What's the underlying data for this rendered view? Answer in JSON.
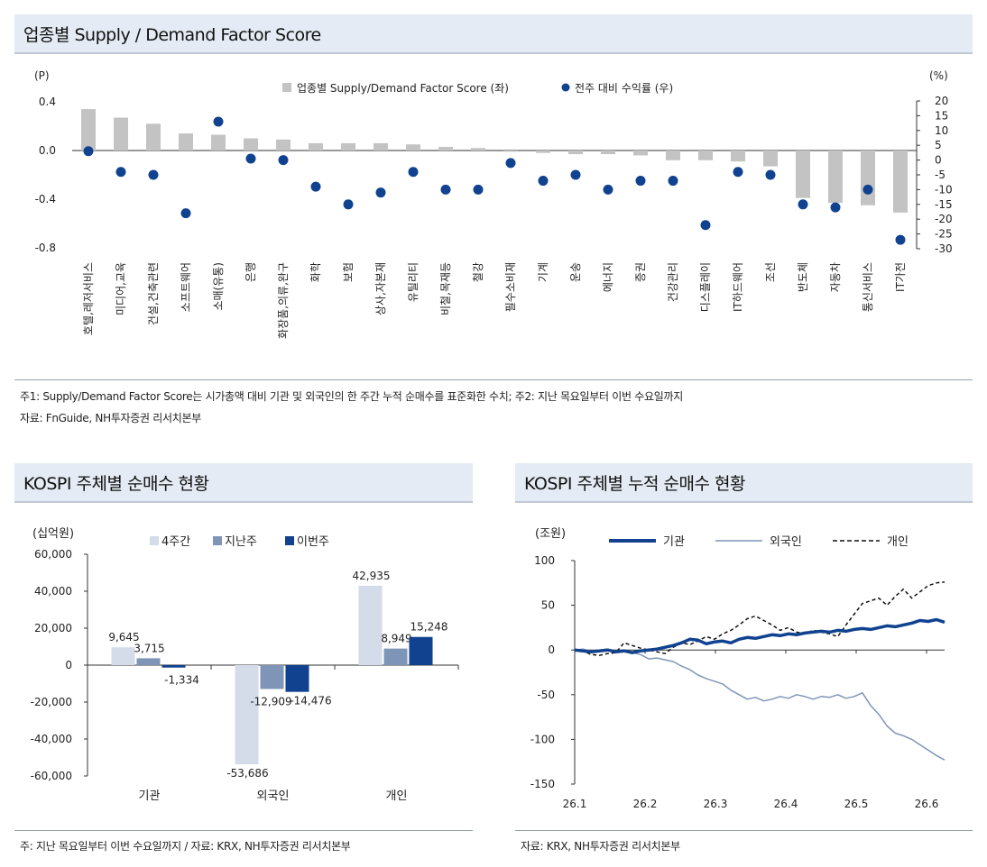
{
  "top": {
    "title": "업종별 Supply / Demand Factor Score",
    "left_unit": "(P)",
    "right_unit": "(%)",
    "legend": {
      "bar": "업종별 Supply/Demand Factor Score (좌)",
      "dot": "전주 대비 수익률 (우)"
    },
    "note1": "주1: Supply/Demand Factor Score는 시가총액 대비 기관 및 외국인의 한 주간 누적 순매수를 표준화한 수치; 주2: 지난 목요일부터 이번 수요일까지",
    "source": "자료: FnGuide, NH투자증권 리서치본부"
  },
  "bottom_left": {
    "title": "KOSPI 주체별 순매수 현황",
    "unit": "(십억원)",
    "note": "주: 지난 목요일부터 이번 수요일까지 / 자료: KRX, NH투자증권 리서치본부"
  },
  "bottom_right": {
    "title": "KOSPI 주체별 누적 순매수 현황",
    "unit": "(조원)",
    "note": "자료: KRX, NH투자증권 리서치본부"
  },
  "chart_data": [
    {
      "type": "bar",
      "categories": [
        "호텔,레저서비스",
        "미디어,교육",
        "건설,건축관련",
        "소프트웨어",
        "소매(유통)",
        "은행",
        "화장품,의류,완구",
        "화학",
        "보험",
        "상사,자본재",
        "유틸리티",
        "비철,목재등",
        "철강",
        "필수소비재",
        "기계",
        "운송",
        "에너지",
        "증권",
        "건강관리",
        "디스플레이",
        "IT하드웨어",
        "조선",
        "반도체",
        "자동차",
        "통신서비스",
        "IT가전"
      ],
      "series": [
        {
          "name": "업종별 Supply/Demand Factor Score (좌)",
          "axis": "left",
          "values": [
            0.34,
            0.27,
            0.22,
            0.14,
            0.13,
            0.1,
            0.09,
            0.06,
            0.06,
            0.06,
            0.05,
            0.03,
            0.02,
            -0.01,
            -0.02,
            -0.03,
            -0.03,
            -0.04,
            -0.08,
            -0.08,
            -0.09,
            -0.13,
            -0.39,
            -0.43,
            -0.45,
            -0.51
          ]
        },
        {
          "name": "전주 대비 수익률 (우)",
          "axis": "right",
          "values": [
            3,
            -4,
            -5,
            -18,
            13,
            0.5,
            0,
            -9,
            -15,
            -11,
            -4,
            -10,
            -10,
            -1,
            -7,
            -5,
            -10,
            -7,
            -7,
            -22,
            -4,
            -5,
            -15,
            -16,
            -10,
            -27
          ]
        }
      ],
      "y_left": {
        "range": [
          -0.8,
          0.4
        ],
        "ticks": [
          "0.4",
          "0.0",
          "-0.4",
          "-0.8"
        ]
      },
      "y_right": {
        "range": [
          -30,
          20
        ],
        "ticks": [
          "20",
          "15",
          "10",
          "5",
          "0",
          "-5",
          "-10",
          "-15",
          "-20",
          "-25",
          "-30"
        ]
      },
      "legend_position": "top-center"
    },
    {
      "type": "bar",
      "categories": [
        "기관",
        "외국인",
        "개인"
      ],
      "series": [
        {
          "name": "4주간",
          "color": "#d3dce8",
          "values": [
            9645,
            -53686,
            42935
          ],
          "labels": [
            "9,645",
            "-53,686",
            "42,935"
          ]
        },
        {
          "name": "지난주",
          "color": "#7f95b8",
          "values": [
            3715,
            -12909,
            8949
          ],
          "labels": [
            "3,715",
            "-12,909",
            "8,949"
          ]
        },
        {
          "name": "이번주",
          "color": "#10428f",
          "values": [
            -1334,
            -14476,
            15248
          ],
          "labels": [
            "-1,334",
            "-14,476",
            "15,248"
          ]
        }
      ],
      "legend": [
        "4주간",
        "지난주",
        "이번주"
      ],
      "ylim": [
        -60000,
        60000
      ],
      "y_ticks": [
        "60,000",
        "40,000",
        "20,000",
        "0",
        "-20,000",
        "-40,000",
        "-60,000"
      ],
      "legend_position": "top-center"
    },
    {
      "type": "line",
      "x_ticks": [
        "26.1",
        "26.2",
        "26.3",
        "26.4",
        "26.5",
        "26.6"
      ],
      "ylim": [
        -150,
        100
      ],
      "y_ticks": [
        "100",
        "50",
        "0",
        "-50",
        "-100",
        "-150"
      ],
      "legend_position": "top",
      "series": [
        {
          "name": "기관",
          "color": "#10428f",
          "style": "thick",
          "values": [
            0,
            -1,
            -2,
            -1,
            0,
            -2,
            -1,
            -3,
            -1,
            0,
            1,
            3,
            5,
            8,
            12,
            11,
            7,
            9,
            10,
            8,
            12,
            14,
            13,
            15,
            17,
            16,
            18,
            17,
            19,
            20,
            21,
            20,
            22,
            21,
            23,
            24,
            23,
            25,
            27,
            26,
            28,
            30,
            33,
            32,
            34,
            31
          ]
        },
        {
          "name": "외국인",
          "color": "#7f95b8",
          "style": "thin",
          "values": [
            0,
            1,
            -1,
            0,
            1,
            -2,
            -1,
            -3,
            -5,
            -10,
            -9,
            -11,
            -13,
            -18,
            -22,
            -28,
            -32,
            -35,
            -38,
            -45,
            -50,
            -55,
            -53,
            -57,
            -55,
            -52,
            -54,
            -50,
            -52,
            -55,
            -52,
            -53,
            -50,
            -54,
            -52,
            -48,
            -62,
            -72,
            -85,
            -93,
            -96,
            -100,
            -106,
            -112,
            -118,
            -123
          ]
        },
        {
          "name": "개인",
          "color": "#111111",
          "style": "dashed",
          "values": [
            0,
            -1,
            -5,
            -6,
            -4,
            -3,
            8,
            5,
            2,
            0,
            -2,
            -4,
            3,
            8,
            6,
            10,
            15,
            12,
            18,
            22,
            28,
            35,
            38,
            33,
            28,
            22,
            25,
            20,
            18,
            22,
            20,
            18,
            15,
            28,
            40,
            52,
            55,
            58,
            50,
            60,
            68,
            58,
            65,
            72,
            75,
            76
          ]
        }
      ]
    }
  ]
}
